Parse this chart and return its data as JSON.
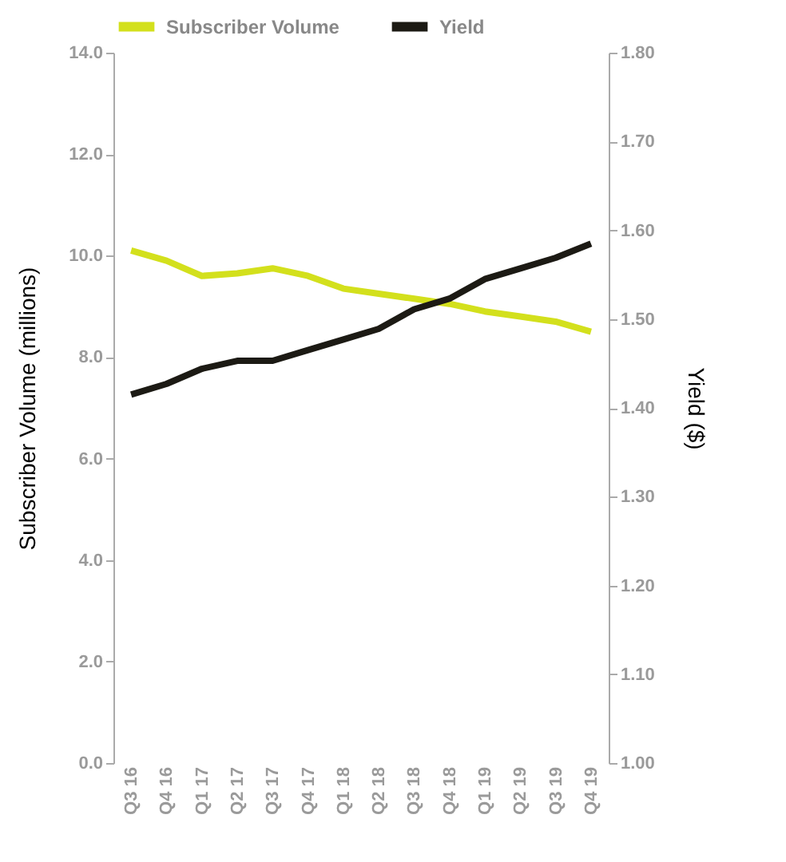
{
  "chart_data": {
    "type": "line",
    "categories": [
      "Q3 16",
      "Q4 16",
      "Q1 17",
      "Q2 17",
      "Q3 17",
      "Q4 17",
      "Q1 18",
      "Q2 18",
      "Q3 18",
      "Q4 18",
      "Q1 19",
      "Q2 19",
      "Q3 19",
      "Q4 19"
    ],
    "ylabel": "Subscriber Volume (millions)",
    "y2label": "Yield ($)",
    "ylim": [
      0,
      14
    ],
    "yticks": [
      {
        "value": 0,
        "label": "0.0"
      },
      {
        "value": 2,
        "label": "2.0"
      },
      {
        "value": 4,
        "label": "4.0"
      },
      {
        "value": 6,
        "label": "6.0"
      },
      {
        "value": 8,
        "label": "8.0"
      },
      {
        "value": 10,
        "label": "10.0"
      },
      {
        "value": 12,
        "label": "12.0"
      },
      {
        "value": 14,
        "label": "14.0"
      }
    ],
    "y2lim": [
      1,
      1.8
    ],
    "y2ticks": [
      {
        "value": 1,
        "label": "1.00"
      },
      {
        "value": 1.1,
        "label": "1.10"
      },
      {
        "value": 1.2,
        "label": "1.20"
      },
      {
        "value": 1.3,
        "label": "1.30"
      },
      {
        "value": 1.4,
        "label": "1.40"
      },
      {
        "value": 1.5,
        "label": "1.50"
      },
      {
        "value": 1.6,
        "label": "1.60"
      },
      {
        "value": 1.7,
        "label": "1.70"
      },
      {
        "value": 1.8,
        "label": "1.80"
      }
    ],
    "series": [
      {
        "name": "Subscriber Volume",
        "color": "#d3e01c",
        "values": [
          10.1,
          9.9,
          9.6,
          9.65,
          9.75,
          9.6,
          9.35,
          9.25,
          9.15,
          9.05,
          8.9,
          8.8,
          8.7,
          8.5
        ]
      },
      {
        "name": "Yield",
        "color": "#1c1a14",
        "axis": "y2",
        "values": [
          1.415,
          1.427,
          1.444,
          1.453,
          1.453,
          1.465,
          1.477,
          1.489,
          1.511,
          1.523,
          1.545,
          1.557,
          1.569,
          1.585
        ]
      }
    ],
    "grid": false,
    "legend": "top",
    "marker": "none",
    "line_style": "solid"
  }
}
